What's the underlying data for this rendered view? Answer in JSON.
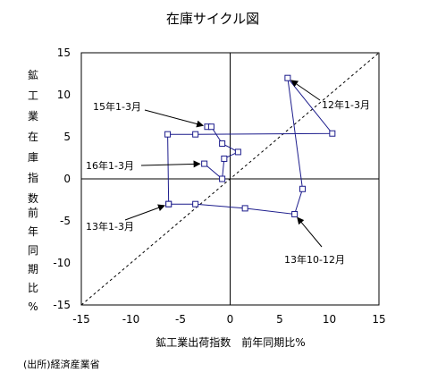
{
  "chart_data": {
    "type": "line",
    "title": "在庫サイクル図",
    "xlabel": "鉱工業出荷指数　前年同期比%",
    "ylabel": "鉱工業在庫指数　前年同期比%",
    "xlim": [
      -15,
      15
    ],
    "ylim": [
      -15,
      15
    ],
    "xticks": [
      "-15",
      "-10",
      "-5",
      "0",
      "5",
      "10",
      "15"
    ],
    "yticks": [
      "15",
      "10",
      "5",
      "0",
      "-5",
      "-10",
      "-15"
    ],
    "grid": false,
    "legend": "none",
    "reference_line": {
      "style": "dashed",
      "from": [
        -15,
        -15
      ],
      "to": [
        15,
        15
      ]
    },
    "series": [
      {
        "color": "#1c1c8c",
        "points": [
          {
            "x": -6.2,
            "y": -3.0
          },
          {
            "x": -3.5,
            "y": -3.0
          },
          {
            "x": 1.5,
            "y": -3.5
          },
          {
            "x": 6.5,
            "y": -4.2
          },
          {
            "x": 7.3,
            "y": -1.2
          },
          {
            "x": 5.8,
            "y": 12.0
          },
          {
            "x": 10.3,
            "y": 5.4
          },
          {
            "x": -3.5,
            "y": 5.3
          },
          {
            "x": -6.3,
            "y": 5.3
          },
          {
            "x": -6.2,
            "y": -3.0
          }
        ]
      },
      {
        "color": "#1c1c8c",
        "points": [
          {
            "x": -2.3,
            "y": 6.2
          },
          {
            "x": -1.9,
            "y": 6.2
          },
          {
            "x": -0.8,
            "y": 4.2
          },
          {
            "x": 0.8,
            "y": 3.2
          },
          {
            "x": -0.6,
            "y": 2.4
          },
          {
            "x": -0.8,
            "y": 0.0
          },
          {
            "x": -2.6,
            "y": 1.8
          }
        ]
      }
    ],
    "annotations": [
      {
        "text": "12年1-3月",
        "point": [
          5.8,
          12.0
        ]
      },
      {
        "text": "15年1-3月",
        "point": [
          -2.3,
          6.2
        ]
      },
      {
        "text": "16年1-3月",
        "point": [
          -2.6,
          1.8
        ]
      },
      {
        "text": "13年1-3月",
        "point": [
          -6.2,
          -3.0
        ]
      },
      {
        "text": "13年10-12月",
        "point": [
          6.5,
          -4.2
        ]
      }
    ]
  },
  "source": "(出所)経済産業省"
}
